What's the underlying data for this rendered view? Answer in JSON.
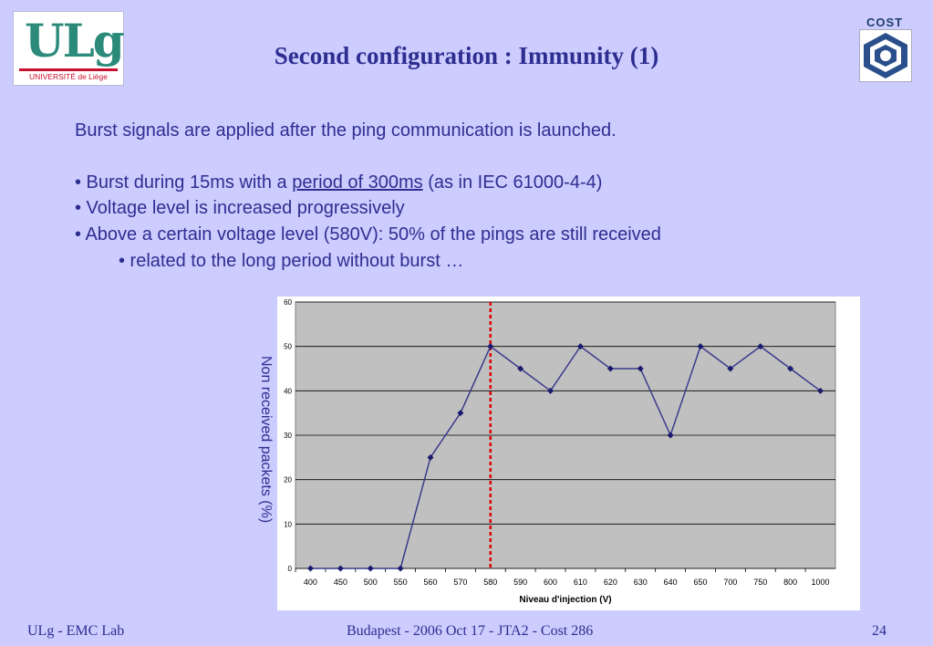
{
  "header": {
    "title": "Second configuration : Immunity (1)",
    "logo_left_text": "ULg",
    "logo_left_subtext": "UNIVERSITÉ de Liège",
    "logo_right_text": "COST"
  },
  "content": {
    "intro": "Burst signals are applied after the ping communication is launched.",
    "bullet1_pre": "• Burst during 15ms with a ",
    "bullet1_link": "period of 300ms",
    "bullet1_post": " (as in IEC 61000-4-4)",
    "bullet2": "• Voltage level is increased progressively",
    "bullet3": "• Above a certain voltage level (580V): 50% of the pings are still received",
    "sub_bullet": "• related to the long period without burst …"
  },
  "chart_data": {
    "type": "line",
    "categories": [
      "400",
      "450",
      "500",
      "550",
      "560",
      "570",
      "580",
      "590",
      "600",
      "610",
      "620",
      "630",
      "640",
      "650",
      "700",
      "750",
      "800",
      "1000"
    ],
    "series": [
      {
        "values": [
          0,
          0,
          0,
          0,
          25,
          35,
          50,
          45,
          40,
          50,
          45,
          45,
          30,
          50,
          45,
          50,
          45,
          40
        ]
      }
    ],
    "xlabel": "Niveau d'injection (V)",
    "ylabel": "Non received packets (%)",
    "ylim": [
      0,
      60
    ],
    "yticks": [
      0,
      10,
      20,
      30,
      40,
      50,
      60
    ],
    "grid": true,
    "threshold_category": "580",
    "colors": {
      "line": "#3a3a8c",
      "threshold": "#e00000",
      "plot_bg": "#c0c0c0",
      "grid": "#000000"
    }
  },
  "footer": {
    "left": "ULg - EMC Lab",
    "center": "Budapest - 2006 Oct 17 - JTA2 - Cost 286",
    "page": "24"
  }
}
